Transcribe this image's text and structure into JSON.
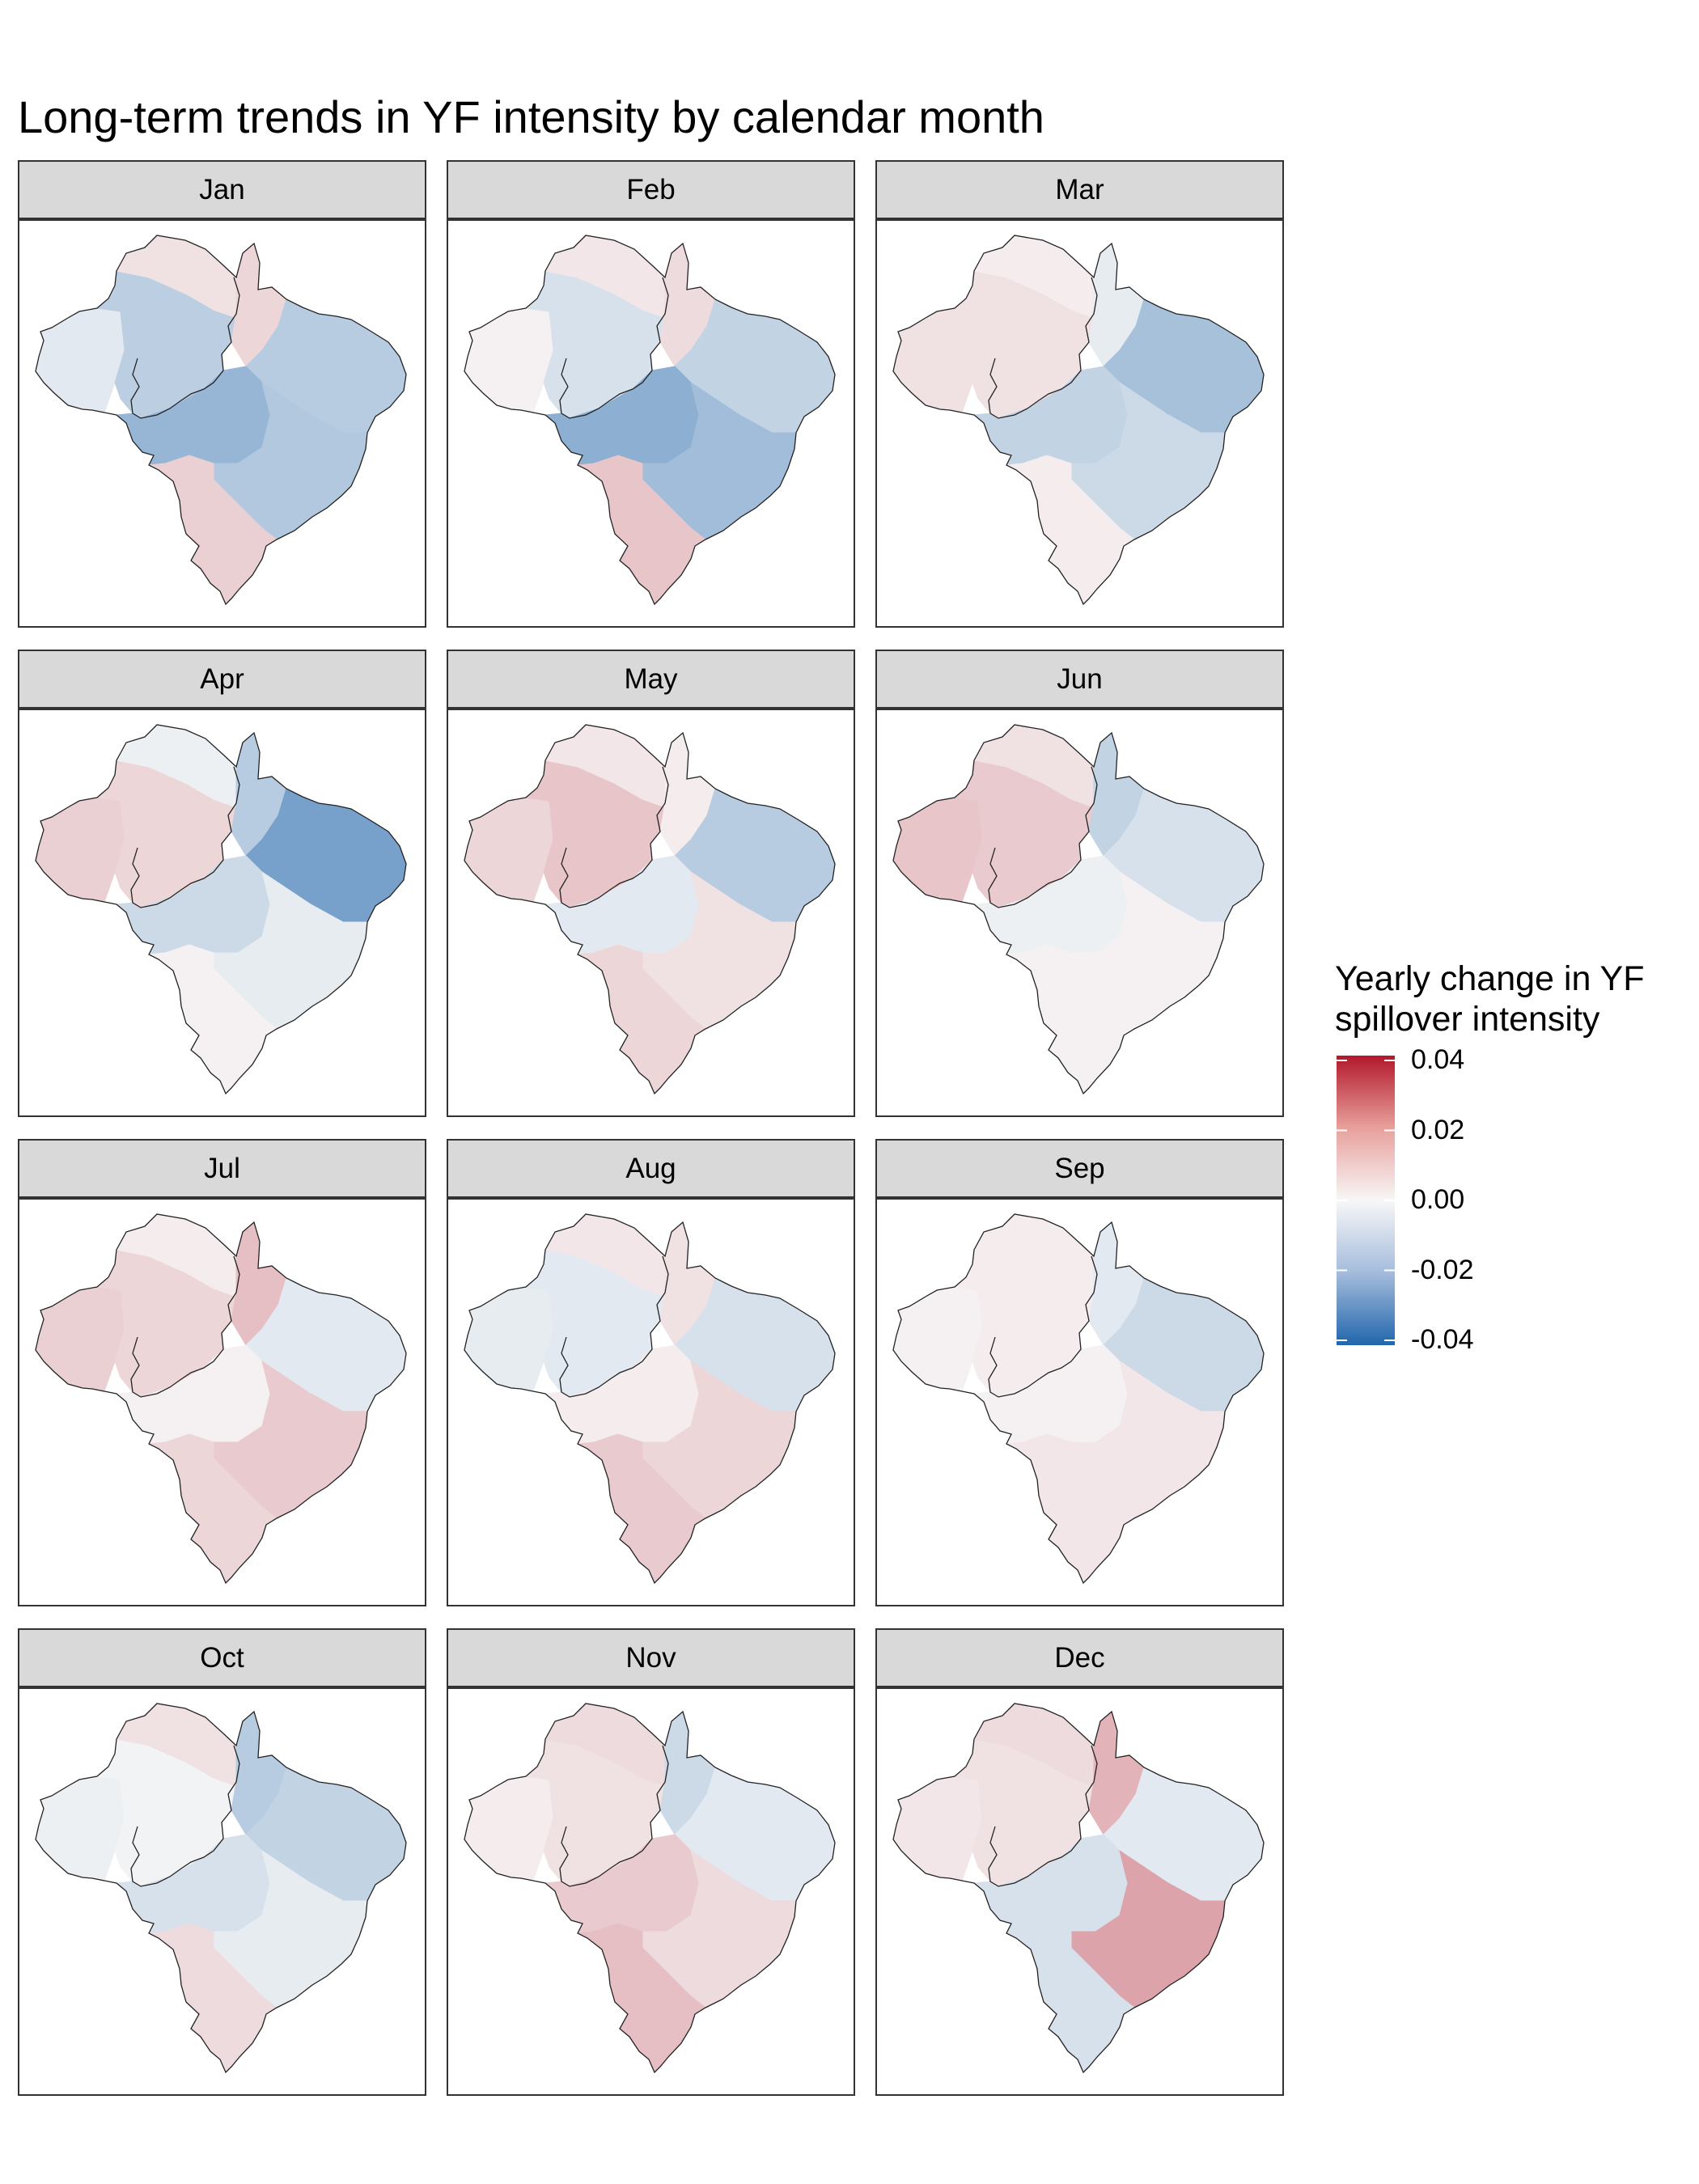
{
  "title": "Long-term trends in YF intensity by calendar month",
  "panels": [
    {
      "label": "Jan",
      "tones": [
        -0.004,
        -0.011,
        0.004,
        0.006,
        -0.012,
        -0.018,
        -0.013,
        0.007
      ]
    },
    {
      "label": "Feb",
      "tones": [
        0.001,
        -0.006,
        0.003,
        0.005,
        -0.01,
        -0.02,
        -0.016,
        0.009
      ]
    },
    {
      "label": "Mar",
      "tones": [
        0.004,
        0.004,
        0.002,
        -0.003,
        -0.015,
        -0.01,
        -0.008,
        0.002
      ]
    },
    {
      "label": "Apr",
      "tones": [
        0.007,
        0.006,
        -0.002,
        -0.012,
        -0.024,
        -0.008,
        -0.003,
        0.001
      ]
    },
    {
      "label": "May",
      "tones": [
        0.006,
        0.009,
        0.003,
        0.002,
        -0.012,
        -0.004,
        0.004,
        0.006
      ]
    },
    {
      "label": "Jun",
      "tones": [
        0.009,
        0.008,
        0.004,
        -0.01,
        -0.006,
        -0.002,
        0.001,
        0.001
      ]
    },
    {
      "label": "Jul",
      "tones": [
        0.007,
        0.006,
        0.002,
        0.01,
        -0.004,
        0.001,
        0.008,
        0.006
      ]
    },
    {
      "label": "Aug",
      "tones": [
        -0.003,
        -0.004,
        0.003,
        0.004,
        -0.006,
        0.002,
        0.006,
        0.008
      ]
    },
    {
      "label": "Sep",
      "tones": [
        0.001,
        0.002,
        0.002,
        -0.004,
        -0.008,
        0.001,
        0.003,
        0.003
      ]
    },
    {
      "label": "Oct",
      "tones": [
        -0.002,
        -0.001,
        0.004,
        -0.012,
        -0.01,
        -0.006,
        -0.003,
        0.005
      ]
    },
    {
      "label": "Nov",
      "tones": [
        0.002,
        0.004,
        0.005,
        -0.008,
        -0.004,
        0.008,
        0.005,
        0.01
      ]
    },
    {
      "label": "Dec",
      "tones": [
        0.003,
        0.004,
        0.005,
        0.012,
        -0.004,
        -0.006,
        0.015,
        -0.006
      ]
    }
  ],
  "legend": {
    "title": "Yearly change in YF spillover intensity",
    "scale": "diverging",
    "low_color": "#2166ac",
    "mid_color": "#f7f7f7",
    "high_color": "#b2182b",
    "range": [
      -0.04,
      0.04
    ],
    "ticks": [
      {
        "value": 0.04,
        "label": "0.04"
      },
      {
        "value": 0.02,
        "label": "0.02"
      },
      {
        "value": 0.0,
        "label": "0.00"
      },
      {
        "value": -0.02,
        "label": "-0.02"
      },
      {
        "value": -0.04,
        "label": "-0.04"
      }
    ]
  }
}
